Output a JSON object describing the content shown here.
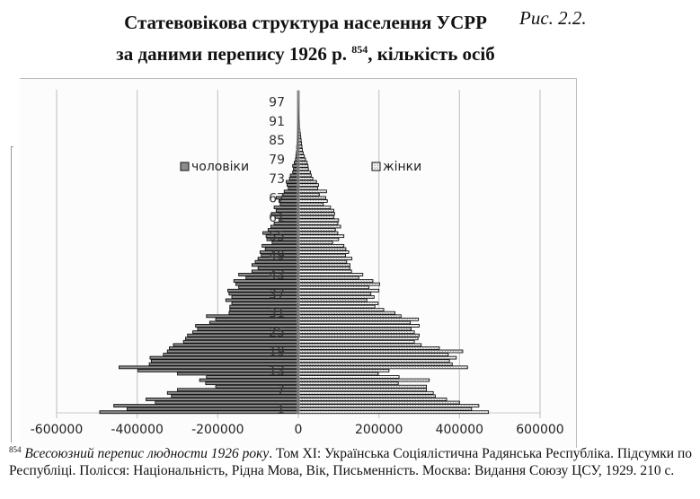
{
  "figure": {
    "title_line1": "Статевовікова структура населення УСРР",
    "title_line2_pre": "за даними перепису 1926 р.",
    "title_footnote_ref": "854",
    "title_line2_post": ", кількість осіб",
    "label": "Рис. 2.2."
  },
  "footnote": {
    "number": "854",
    "italic": "Всесоюзний перепис людности 1926 року",
    "text1": ". Том XI: Українська Соціялістична Радянська Республіка. Підсумки по Республіці. Полісся: Національність, Рідна Мова, Вік, Письменність. Москва: Видання Союзу ЦСУ, 1929. 210 с."
  },
  "chart_data": {
    "type": "bar",
    "orientation": "horizontal",
    "subtype": "population-pyramid",
    "title": "Статевовікова структура населення УСРР за даними перепису 1926 р., кількість осіб",
    "xlabel": "",
    "ylabel": "",
    "xlim": [
      -600000,
      600000
    ],
    "xticks": [
      -600000,
      -400000,
      -200000,
      0,
      200000,
      400000,
      600000
    ],
    "xtick_labels": [
      "-600000",
      "-400000",
      "-200000",
      "0",
      "200000",
      "400000",
      "600000"
    ],
    "ytick_labels": [
      "1",
      "7",
      "13",
      "19",
      "25",
      "31",
      "37",
      "43",
      "49",
      "55",
      "61",
      "67",
      "73",
      "79",
      "85",
      "91",
      "97"
    ],
    "grid": "vertical",
    "legend": [
      {
        "name": "чоловіки",
        "color": "#8c8c8c",
        "position": "left-middle"
      },
      {
        "name": "жінки",
        "color": "#e6e6e6",
        "pattern": "dotted",
        "position": "right-middle"
      }
    ],
    "categories": [
      0,
      1,
      2,
      3,
      4,
      5,
      6,
      7,
      8,
      9,
      10,
      11,
      12,
      13,
      14,
      15,
      16,
      17,
      18,
      19,
      20,
      21,
      22,
      23,
      24,
      25,
      26,
      27,
      28,
      29,
      30,
      31,
      32,
      33,
      34,
      35,
      36,
      37,
      38,
      39,
      40,
      41,
      42,
      43,
      44,
      45,
      46,
      47,
      48,
      49,
      50,
      51,
      52,
      53,
      54,
      55,
      56,
      57,
      58,
      59,
      60,
      61,
      62,
      63,
      64,
      65,
      66,
      67,
      68,
      69,
      70,
      71,
      72,
      73,
      74,
      75,
      76,
      77,
      78,
      79,
      80,
      81,
      82,
      83,
      84,
      85,
      86,
      87,
      88,
      89,
      90,
      91,
      92,
      93,
      94,
      95,
      96,
      97,
      98,
      99,
      100
    ],
    "series": [
      {
        "name": "чоловіки",
        "values": [
          -493000,
          -425000,
          -458000,
          -355000,
          -378000,
          -315000,
          -325000,
          -300000,
          -205000,
          -230000,
          -245000,
          -228000,
          -300000,
          -398000,
          -445000,
          -370000,
          -365000,
          -368000,
          -335000,
          -325000,
          -320000,
          -310000,
          -285000,
          -280000,
          -275000,
          -262000,
          -250000,
          -255000,
          -220000,
          -205000,
          -228000,
          -172000,
          -170000,
          -170000,
          -165000,
          -180000,
          -165000,
          -172000,
          -175000,
          -148000,
          -155000,
          -160000,
          -130000,
          -148000,
          -115000,
          -100000,
          -115000,
          -107000,
          -100000,
          -92000,
          -95000,
          -82000,
          -90000,
          -65000,
          -78000,
          -80000,
          -88000,
          -75000,
          -68000,
          -60000,
          -48000,
          -58000,
          -67000,
          -55000,
          -60000,
          -45000,
          -48000,
          -55000,
          -38000,
          -35000,
          -25000,
          -28000,
          -30000,
          -22000,
          -20000,
          -14000,
          -12000,
          -14000,
          -10000,
          -7000,
          -6000,
          -5000,
          -4000,
          -4000,
          -3000,
          -2500,
          -2000,
          -1800,
          -1500,
          -1300,
          -1000,
          -800,
          -700,
          -600,
          -500,
          -400,
          -300,
          -300,
          -200,
          -200,
          -200
        ]
      },
      {
        "name": "жінки",
        "values": [
          472000,
          430000,
          448000,
          400000,
          368000,
          340000,
          335000,
          318000,
          318000,
          248000,
          325000,
          250000,
          198000,
          225000,
          420000,
          382000,
          375000,
          392000,
          372000,
          408000,
          350000,
          305000,
          288000,
          297000,
          300000,
          288000,
          280000,
          300000,
          278000,
          298000,
          255000,
          240000,
          212000,
          190000,
          198000,
          170000,
          188000,
          180000,
          200000,
          175000,
          202000,
          185000,
          150000,
          160000,
          132000,
          128000,
          128000,
          120000,
          133000,
          117000,
          125000,
          118000,
          113000,
          85000,
          100000,
          113000,
          98000,
          92000,
          105000,
          98000,
          100000,
          88000,
          90000,
          88000,
          80000,
          62000,
          72000,
          68000,
          52000,
          70000,
          48000,
          50000,
          45000,
          36000,
          32000,
          30000,
          25000,
          24000,
          22000,
          18000,
          15000,
          12000,
          10000,
          9000,
          8000,
          7000,
          6000,
          5000,
          4000,
          3000,
          2500,
          2000,
          1500,
          1200,
          1000,
          800,
          600,
          500,
          400,
          300,
          300
        ]
      }
    ]
  }
}
